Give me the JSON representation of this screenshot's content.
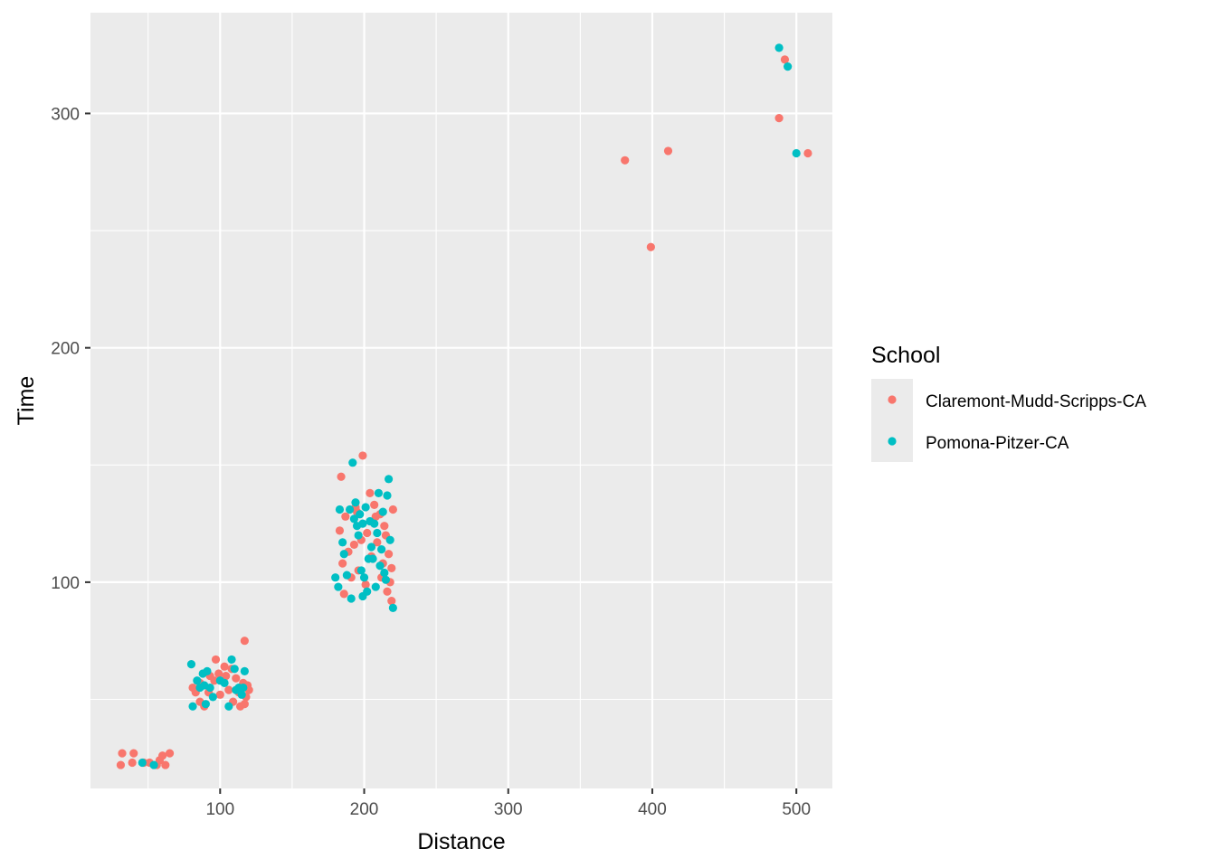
{
  "chart_data": {
    "type": "scatter",
    "title": "",
    "xlabel": "Distance",
    "ylabel": "Time",
    "xlim": [
      10,
      525
    ],
    "ylim": [
      12,
      343
    ],
    "xticks": [
      100,
      200,
      300,
      400,
      500
    ],
    "yticks": [
      100,
      200,
      300
    ],
    "grid": true,
    "legend": {
      "title": "School",
      "placement": "right"
    },
    "series": [
      {
        "name": "Claremont-Mudd-Scripps-CA",
        "color": "#F8766D",
        "points": [
          [
            31,
            22
          ],
          [
            32,
            27
          ],
          [
            39,
            23
          ],
          [
            40,
            27
          ],
          [
            47,
            23
          ],
          [
            51,
            23
          ],
          [
            56,
            22
          ],
          [
            58,
            24
          ],
          [
            60,
            26
          ],
          [
            62,
            22
          ],
          [
            65,
            27
          ],
          [
            81,
            55
          ],
          [
            83,
            53
          ],
          [
            86,
            57
          ],
          [
            86,
            49
          ],
          [
            89,
            47
          ],
          [
            92,
            53
          ],
          [
            93,
            60
          ],
          [
            96,
            58
          ],
          [
            97,
            67
          ],
          [
            99,
            61
          ],
          [
            100,
            52
          ],
          [
            103,
            64
          ],
          [
            104,
            60
          ],
          [
            106,
            54
          ],
          [
            108,
            63
          ],
          [
            109,
            49
          ],
          [
            111,
            59
          ],
          [
            113,
            53
          ],
          [
            114,
            47
          ],
          [
            116,
            57
          ],
          [
            117,
            48
          ],
          [
            117,
            75
          ],
          [
            118,
            51
          ],
          [
            119,
            56
          ],
          [
            120,
            54
          ],
          [
            183,
            122
          ],
          [
            184,
            145
          ],
          [
            185,
            108
          ],
          [
            186,
            95
          ],
          [
            187,
            128
          ],
          [
            189,
            113
          ],
          [
            191,
            102
          ],
          [
            193,
            116
          ],
          [
            194,
            132
          ],
          [
            195,
            130
          ],
          [
            196,
            105
          ],
          [
            198,
            118
          ],
          [
            199,
            154
          ],
          [
            201,
            99
          ],
          [
            202,
            121
          ],
          [
            204,
            138
          ],
          [
            205,
            111
          ],
          [
            207,
            133
          ],
          [
            208,
            128
          ],
          [
            209,
            117
          ],
          [
            211,
            129
          ],
          [
            212,
            102
          ],
          [
            213,
            108
          ],
          [
            214,
            124
          ],
          [
            215,
            120
          ],
          [
            216,
            96
          ],
          [
            217,
            112
          ],
          [
            218,
            100
          ],
          [
            219,
            106
          ],
          [
            219,
            92
          ],
          [
            220,
            131
          ],
          [
            381,
            280
          ],
          [
            399,
            243
          ],
          [
            411,
            284
          ],
          [
            488,
            298
          ],
          [
            492,
            323
          ],
          [
            508,
            283
          ]
        ]
      },
      {
        "name": "Pomona-Pitzer-CA",
        "color": "#00BFC4",
        "points": [
          [
            46,
            23
          ],
          [
            54,
            22
          ],
          [
            80,
            65
          ],
          [
            81,
            47
          ],
          [
            84,
            58
          ],
          [
            86,
            55
          ],
          [
            88,
            61
          ],
          [
            89,
            56
          ],
          [
            90,
            48
          ],
          [
            91,
            62
          ],
          [
            93,
            55
          ],
          [
            95,
            51
          ],
          [
            100,
            58
          ],
          [
            103,
            57
          ],
          [
            106,
            47
          ],
          [
            108,
            67
          ],
          [
            110,
            63
          ],
          [
            111,
            54
          ],
          [
            113,
            55
          ],
          [
            115,
            52
          ],
          [
            116,
            55
          ],
          [
            117,
            62
          ],
          [
            180,
            102
          ],
          [
            182,
            98
          ],
          [
            183,
            131
          ],
          [
            185,
            117
          ],
          [
            186,
            112
          ],
          [
            188,
            103
          ],
          [
            190,
            131
          ],
          [
            191,
            93
          ],
          [
            192,
            151
          ],
          [
            193,
            127
          ],
          [
            194,
            134
          ],
          [
            195,
            124
          ],
          [
            196,
            120
          ],
          [
            197,
            129
          ],
          [
            198,
            105
          ],
          [
            199,
            94
          ],
          [
            199,
            125
          ],
          [
            200,
            102
          ],
          [
            201,
            132
          ],
          [
            202,
            96
          ],
          [
            203,
            110
          ],
          [
            204,
            126
          ],
          [
            205,
            115
          ],
          [
            206,
            110
          ],
          [
            207,
            125
          ],
          [
            208,
            98
          ],
          [
            209,
            121
          ],
          [
            210,
            138
          ],
          [
            211,
            107
          ],
          [
            212,
            114
          ],
          [
            213,
            130
          ],
          [
            214,
            104
          ],
          [
            215,
            101
          ],
          [
            216,
            137
          ],
          [
            217,
            144
          ],
          [
            218,
            118
          ],
          [
            220,
            89
          ]
        ],
        "extra_points": [
          [
            488,
            328
          ],
          [
            494,
            320
          ],
          [
            500,
            283
          ]
        ]
      }
    ]
  }
}
